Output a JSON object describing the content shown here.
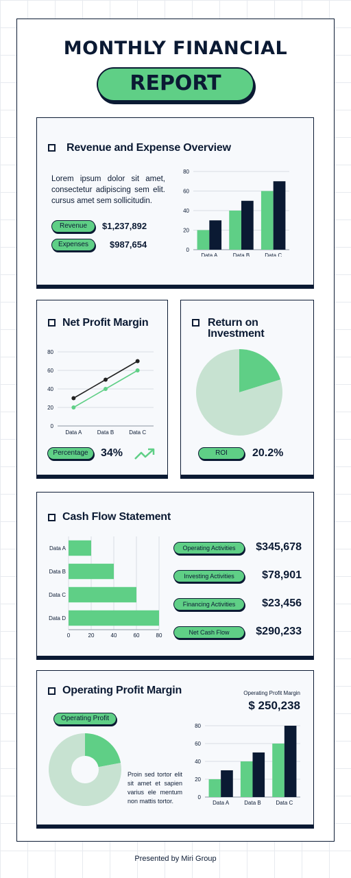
{
  "header": {
    "title": "MONTHLY FINANCIAL",
    "subtitle": "REPORT"
  },
  "colors": {
    "green": "#5fcf86",
    "navy": "#0b1a33",
    "light_green": "#c7e2d1"
  },
  "revenue_expense": {
    "title": "Revenue and Expense Overview",
    "description": "Lorem ipsum dolor sit amet, consectetur adipiscing sem elit. cursus amet sem sollicitudin.",
    "revenue_label": "Revenue",
    "revenue_value": "$1,237,892",
    "expenses_label": "Expenses",
    "expenses_value": "$987,654"
  },
  "net_profit": {
    "title": "Net Profit Margin",
    "tag": "Percentage",
    "value": "34%"
  },
  "roi": {
    "title_line1": "Return on",
    "title_line2": "Investment",
    "tag": "ROI",
    "value": "20.2%"
  },
  "cash_flow": {
    "title": "Cash Flow Statement",
    "items": [
      {
        "label": "Operating Activities",
        "value": "$345,678"
      },
      {
        "label": "Investing Activities",
        "value": "$78,901"
      },
      {
        "label": "Financing Activities",
        "value": "$23,456"
      },
      {
        "label": "Net Cash Flow",
        "value": "$290,233"
      }
    ]
  },
  "operating_profit": {
    "title": "Operating Profit Margin",
    "tag": "Operating Profit",
    "caption": "Operating Profit Margin",
    "value": "$ 250,238",
    "description": "Proin sed tortor elit sit amet et sapien varius ele mentum non mattis tortor."
  },
  "footer": {
    "text": "Presented by Miri Group"
  },
  "chart_data": [
    {
      "id": "revenue-expense-bar",
      "type": "bar",
      "categories": [
        "Data A",
        "Data B",
        "Data C"
      ],
      "series": [
        {
          "values": [
            20,
            40,
            60
          ],
          "color": "#5fcf86"
        },
        {
          "values": [
            30,
            50,
            70
          ],
          "color": "#0b1a33"
        }
      ],
      "ylim": [
        0,
        80
      ],
      "yticks": [
        0,
        20,
        40,
        60,
        80
      ],
      "grid": true
    },
    {
      "id": "net-profit-line",
      "type": "line",
      "categories": [
        "Data A",
        "Data B",
        "Data C"
      ],
      "series": [
        {
          "values": [
            30,
            50,
            70
          ],
          "color": "#222222"
        },
        {
          "values": [
            20,
            40,
            60
          ],
          "color": "#5fcf86"
        }
      ],
      "ylim": [
        0,
        80
      ],
      "yticks": [
        0,
        20,
        40,
        60,
        80
      ],
      "grid": true
    },
    {
      "id": "roi-pie",
      "type": "pie",
      "values": [
        20.2,
        79.8
      ],
      "colors": [
        "#5fcf86",
        "#c7e2d1"
      ]
    },
    {
      "id": "cash-flow-hbar",
      "type": "bar",
      "orientation": "horizontal",
      "categories": [
        "Data A",
        "Data B",
        "Data C",
        "Data D"
      ],
      "values": [
        20,
        40,
        60,
        80
      ],
      "xlim": [
        0,
        80
      ],
      "xticks": [
        0,
        20,
        40,
        60,
        80
      ],
      "color": "#5fcf86",
      "grid": true
    },
    {
      "id": "operating-donut",
      "type": "pie",
      "values": [
        22,
        78
      ],
      "colors": [
        "#5fcf86",
        "#c7e2d1"
      ],
      "donut": true
    },
    {
      "id": "operating-bar",
      "type": "bar",
      "categories": [
        "Data A",
        "Data B",
        "Data C"
      ],
      "series": [
        {
          "values": [
            20,
            40,
            60
          ],
          "color": "#5fcf86"
        },
        {
          "values": [
            30,
            50,
            80
          ],
          "color": "#0b1a33"
        }
      ],
      "ylim": [
        0,
        80
      ],
      "yticks": [
        0,
        20,
        40,
        60,
        80
      ],
      "grid": true
    }
  ]
}
